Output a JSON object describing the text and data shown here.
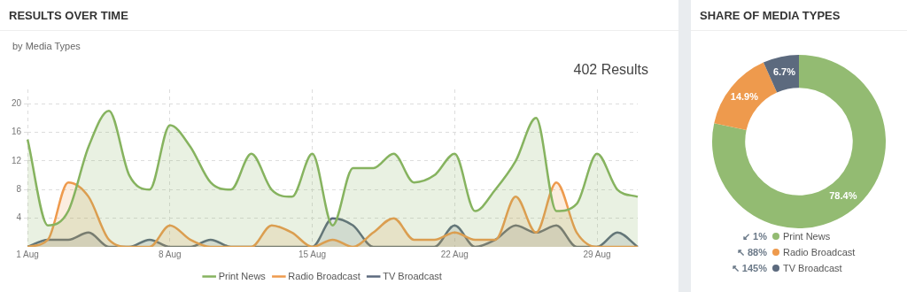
{
  "chart_data": [
    {
      "type": "area",
      "title": "RESULTS OVER TIME",
      "subtitle": "by Media Types",
      "annotations": [
        "402 Results"
      ],
      "categories": [
        "1 Aug",
        null,
        null,
        null,
        null,
        null,
        null,
        "8 Aug",
        null,
        null,
        null,
        null,
        null,
        null,
        "15 Aug",
        null,
        null,
        null,
        null,
        null,
        null,
        "22 Aug",
        null,
        null,
        null,
        null,
        null,
        null,
        "29 Aug",
        null,
        null
      ],
      "series": [
        {
          "name": "Print News",
          "color": "#86b35f",
          "values": [
            15,
            3,
            5,
            14,
            19,
            10,
            8,
            17,
            14,
            9,
            8,
            13,
            8,
            7,
            13,
            3,
            11,
            11,
            13,
            9,
            10,
            13,
            5,
            8,
            12,
            18,
            5,
            6,
            13,
            8,
            7
          ]
        },
        {
          "name": "Radio Broadcast",
          "color": "#ee9a4d",
          "values": [
            0,
            1,
            9,
            7,
            1,
            0,
            0,
            3,
            1,
            0,
            0,
            0,
            3,
            2,
            0,
            1,
            0,
            2,
            4,
            1,
            1,
            2,
            1,
            1,
            7,
            2,
            9,
            2,
            0,
            0,
            0
          ]
        },
        {
          "name": "TV Broadcast",
          "color": "#5c6a7e",
          "values": [
            0,
            1,
            1,
            2,
            0,
            0,
            1,
            0,
            0,
            1,
            0,
            0,
            0,
            0,
            0,
            4,
            3,
            0,
            0,
            0,
            0,
            3,
            0,
            1,
            3,
            2,
            3,
            0,
            0,
            2,
            0
          ]
        }
      ],
      "ylim": [
        0,
        22
      ],
      "yticks": [
        4,
        8,
        12,
        16,
        20
      ],
      "grid": true,
      "legend": "bottom",
      "marker": "none"
    },
    {
      "type": "donut",
      "title": "SHARE OF MEDIA TYPES",
      "categories": [
        "Print News",
        "Radio Broadcast",
        "TV Broadcast"
      ],
      "values": [
        78.4,
        14.9,
        6.7
      ],
      "value_labels": [
        "78.4%",
        "14.9%",
        "6.7%"
      ],
      "colors": [
        "#93bb72",
        "#ee9a4d",
        "#5c6a7e"
      ],
      "legend": "bottom",
      "annotations": [
        "↙ 1%",
        "↖ 88%",
        "↖ 145%"
      ]
    }
  ]
}
